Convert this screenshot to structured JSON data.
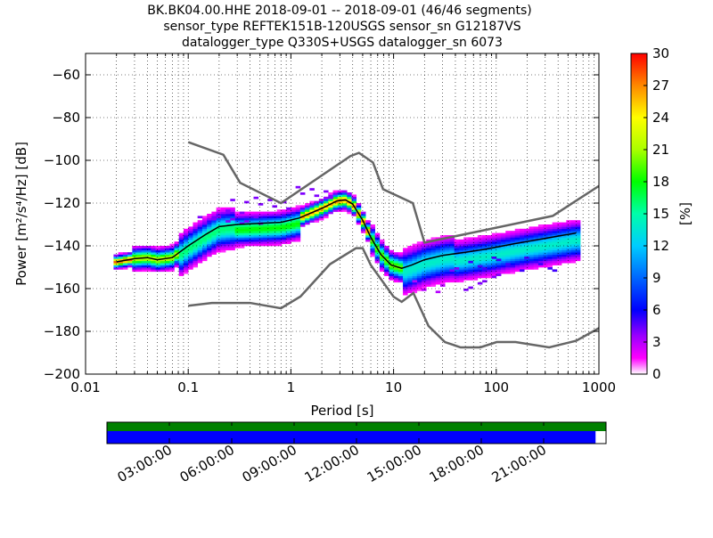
{
  "chart_data": {
    "type": "heatmap",
    "title_lines": [
      "BK.BK04.00.HHE   2018-09-01 -- 2018-09-01  (46/46 segments)",
      "sensor_type REFTEK151B-120USGS sensor_sn G12187VS",
      "datalogger_type Q330S+USGS datalogger_sn 6073"
    ],
    "xlabel": "Period [s]",
    "ylabel": "Power [m²/s⁴/Hz] [dB]",
    "x_scale": "log",
    "xlim": [
      0.01,
      1000
    ],
    "ylim": [
      -200,
      -50
    ],
    "x_ticks": [
      {
        "value": 0.01,
        "label": "0.01"
      },
      {
        "value": 0.1,
        "label": "0.1"
      },
      {
        "value": 1,
        "label": "1"
      },
      {
        "value": 10,
        "label": "10"
      },
      {
        "value": 100,
        "label": "100"
      },
      {
        "value": 1000,
        "label": "1000"
      }
    ],
    "y_ticks": [
      -200,
      -180,
      -160,
      -140,
      -120,
      -100,
      -80,
      -60
    ],
    "grid": true,
    "colorbar": {
      "label": "[%]",
      "min": 0,
      "max": 30,
      "ticks": [
        0,
        3,
        6,
        9,
        12,
        15,
        18,
        21,
        24,
        27,
        30
      ],
      "colormap": "pqlx"
    },
    "noise_models": {
      "color": "#666666",
      "high": {
        "x": [
          0.1,
          0.22,
          0.32,
          0.8,
          3.8,
          4.6,
          6.3,
          7.9,
          15.4,
          20,
          354.8,
          1000
        ],
        "y": [
          -91.5,
          -97.4,
          -110.5,
          -120.0,
          -98.0,
          -96.5,
          -101.0,
          -113.5,
          -120.0,
          -138.5,
          -126.0,
          -112.0
        ]
      },
      "low": {
        "x": [
          0.1,
          0.17,
          0.4,
          0.8,
          1.24,
          2.4,
          4.3,
          5.0,
          6.0,
          10.0,
          12.0,
          15.6,
          21.9,
          31.6,
          45,
          70,
          101,
          154,
          328,
          600,
          1000
        ],
        "y": [
          -168.0,
          -166.7,
          -166.7,
          -169.2,
          -163.7,
          -148.6,
          -141.1,
          -141.1,
          -149.0,
          -163.8,
          -166.2,
          -162.1,
          -177.5,
          -185.0,
          -187.5,
          -187.5,
          -185.0,
          -185.0,
          -187.5,
          -184.4,
          -178.5
        ]
      }
    },
    "mode_line": {
      "color": "#000000",
      "x": [
        0.02,
        0.03,
        0.04,
        0.05,
        0.07,
        0.1,
        0.15,
        0.2,
        0.3,
        0.5,
        0.8,
        1.2,
        2.0,
        2.8,
        3.4,
        4.0,
        5.0,
        6.0,
        7.5,
        9.5,
        12.0,
        15.0,
        20.0,
        30.0,
        50.0,
        80.0,
        150.0,
        300.0,
        600.0
      ],
      "y": [
        -147.5,
        -146.0,
        -145.5,
        -146.5,
        -145.5,
        -140.0,
        -134.5,
        -131.0,
        -130.0,
        -129.5,
        -129.0,
        -127.0,
        -122.5,
        -119.0,
        -118.5,
        -120.5,
        -128.0,
        -136.0,
        -144.0,
        -149.0,
        -150.5,
        -149.0,
        -146.5,
        -144.5,
        -143.0,
        -141.5,
        -139.0,
        -136.5,
        -134.0
      ]
    },
    "pdf_color_stops": [
      {
        "p": 0,
        "color": "#ffffff"
      },
      {
        "p": 0.05,
        "color": "#ff00ff"
      },
      {
        "p": 0.12,
        "color": "#9900ff"
      },
      {
        "p": 0.2,
        "color": "#0000ff"
      },
      {
        "p": 0.3,
        "color": "#0066ff"
      },
      {
        "p": 0.4,
        "color": "#00ccff"
      },
      {
        "p": 0.5,
        "color": "#00ffaa"
      },
      {
        "p": 0.6,
        "color": "#00ff00"
      },
      {
        "p": 0.7,
        "color": "#aaff00"
      },
      {
        "p": 0.8,
        "color": "#ffff00"
      },
      {
        "p": 0.9,
        "color": "#ff8800"
      },
      {
        "p": 1.0,
        "color": "#ff0000"
      }
    ],
    "pdf_bands": [
      {
        "x_from": 0.018,
        "x_to": 0.03,
        "y_center_offset": 0,
        "spread": 1.5,
        "peak": 28
      },
      {
        "x_from": 0.03,
        "x_to": 0.08,
        "y_center_offset": 0,
        "spread": 2.5,
        "peak": 22
      },
      {
        "x_from": 0.08,
        "x_to": 0.3,
        "y_center_offset": -1.5,
        "spread": 4.5,
        "peak": 16
      },
      {
        "x_from": 0.3,
        "x_to": 1.2,
        "y_center_offset": -2.5,
        "spread": 3.5,
        "peak": 18
      },
      {
        "x_from": 1.2,
        "x_to": 6,
        "y_center_offset": 0,
        "spread": 2.0,
        "peak": 27
      },
      {
        "x_from": 6,
        "x_to": 12,
        "y_center_offset": 0,
        "spread": 3.0,
        "peak": 20
      },
      {
        "x_from": 12,
        "x_to": 40,
        "y_center_offset": -2.0,
        "spread": 5.0,
        "peak": 14
      },
      {
        "x_from": 40,
        "x_to": 650,
        "y_center_offset": -3.5,
        "spread": 4.5,
        "peak": 14
      }
    ],
    "pdf_outliers": [
      {
        "x_from": 0.2,
        "x_to": 2.5,
        "y_from": -118,
        "y_to": -110,
        "value": 4
      },
      {
        "x_from": 0.12,
        "x_to": 0.5,
        "y_from": -127,
        "y_to": -123,
        "value": 4
      },
      {
        "x_from": 14,
        "x_to": 30,
        "y_from": -165,
        "y_to": -155,
        "value": 3
      },
      {
        "x_from": 30,
        "x_to": 120,
        "y_from": -162,
        "y_to": -150,
        "value": 4
      },
      {
        "x_from": 50,
        "x_to": 400,
        "y_from": -152,
        "y_to": -145,
        "value": 5
      }
    ]
  },
  "time_axis": {
    "tick_labels": [
      "03:00:00",
      "06:00:00",
      "09:00:00",
      "12:00:00",
      "15:00:00",
      "18:00:00",
      "21:00:00"
    ],
    "tick_hours": [
      3,
      6,
      9,
      12,
      15,
      18,
      21
    ],
    "span_hours": 24,
    "data_coverage_color": "#008000",
    "data_coverage_fraction": [
      0.0,
      1.0
    ],
    "psd_coverage_color": "#0000ff",
    "psd_coverage_fraction": [
      0.0,
      0.979
    ]
  }
}
